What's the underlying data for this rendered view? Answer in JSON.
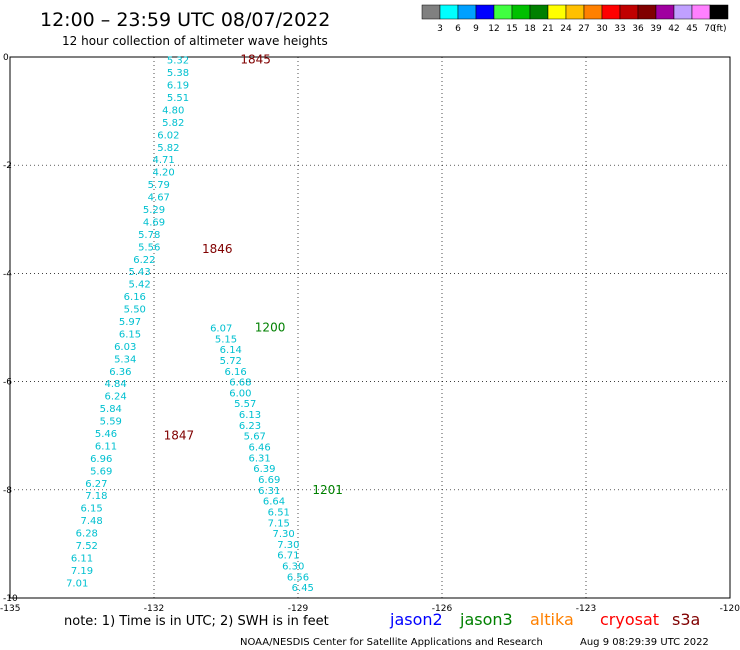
{
  "title": "12:00 – 23:59 UTC 08/07/2022",
  "subtitle": "12 hour collection of altimeter wave heights",
  "legend": {
    "unit": "(ft)",
    "bins": [
      {
        "label": "3",
        "color": "#808080"
      },
      {
        "label": "6",
        "color": "#00ffff"
      },
      {
        "label": "9",
        "color": "#00a0ff"
      },
      {
        "label": "12",
        "color": "#0000ff"
      },
      {
        "label": "15",
        "color": "#40ff40"
      },
      {
        "label": "18",
        "color": "#00c000"
      },
      {
        "label": "21",
        "color": "#008000"
      },
      {
        "label": "24",
        "color": "#ffff00"
      },
      {
        "label": "27",
        "color": "#ffc000"
      },
      {
        "label": "30",
        "color": "#ff8000"
      },
      {
        "label": "33",
        "color": "#ff0000"
      },
      {
        "label": "36",
        "color": "#c00000"
      },
      {
        "label": "39",
        "color": "#800000"
      },
      {
        "label": "42",
        "color": "#a000a0"
      },
      {
        "label": "45",
        "color": "#c0a0ff"
      },
      {
        "label": "70",
        "color": "#ff80ff"
      },
      {
        "label": "",
        "color": "#000000"
      }
    ]
  },
  "footer": {
    "note": "note:  1) Time is in UTC;  2) SWH is in feet",
    "credit": "NOAA/NESDIS Center for Satellite Applications and Research",
    "timestamp": "Aug  9 08:29:39 UTC 2022",
    "satellites": [
      {
        "label": "jason2",
        "color": "#0000ff"
      },
      {
        "label": "jason3",
        "color": "#008000"
      },
      {
        "label": "altika",
        "color": "#ff8000"
      },
      {
        "label": "cryosat",
        "color": "#ff0000"
      },
      {
        "label": "s3a",
        "color": "#800000"
      }
    ]
  },
  "chart_data": {
    "type": "scatter",
    "xlim": [
      -135,
      -120
    ],
    "ylim": [
      -10,
      0
    ],
    "x_ticks": [
      "-135",
      "-132",
      "-129",
      "-126",
      "-123",
      "-120"
    ],
    "y_ticks": [
      "0",
      "-2",
      "-4",
      "-6",
      "-8",
      "-10"
    ],
    "value_color": "#00c0d0",
    "passes": [
      {
        "satellite": "s3a",
        "label_color": "#800000",
        "time_labels": [
          {
            "text": "1845",
            "x": -130.2,
            "y": -0.05
          },
          {
            "text": "1846",
            "x": -131.0,
            "y": -3.55
          },
          {
            "text": "1847",
            "x": -131.8,
            "y": -7.0
          }
        ],
        "points": [
          {
            "x": -131.5,
            "y": -0.05,
            "v": "5.32"
          },
          {
            "x": -131.5,
            "y": -0.28,
            "v": "5.38"
          },
          {
            "x": -131.5,
            "y": -0.51,
            "v": "6.19"
          },
          {
            "x": -131.5,
            "y": -0.74,
            "v": "5.51"
          },
          {
            "x": -131.6,
            "y": -0.97,
            "v": "4.80"
          },
          {
            "x": -131.6,
            "y": -1.2,
            "v": "5.82"
          },
          {
            "x": -131.7,
            "y": -1.43,
            "v": "6.02"
          },
          {
            "x": -131.7,
            "y": -1.66,
            "v": "5.82"
          },
          {
            "x": -131.8,
            "y": -1.89,
            "v": "4.71"
          },
          {
            "x": -131.8,
            "y": -2.12,
            "v": "4.20"
          },
          {
            "x": -131.9,
            "y": -2.35,
            "v": "5.79"
          },
          {
            "x": -131.9,
            "y": -2.58,
            "v": "4.67"
          },
          {
            "x": -132.0,
            "y": -2.81,
            "v": "5.29"
          },
          {
            "x": -132.0,
            "y": -3.04,
            "v": "4.69"
          },
          {
            "x": -132.1,
            "y": -3.27,
            "v": "5.78"
          },
          {
            "x": -132.1,
            "y": -3.5,
            "v": "5.56"
          },
          {
            "x": -132.2,
            "y": -3.73,
            "v": "6.22"
          },
          {
            "x": -132.3,
            "y": -3.96,
            "v": "5.43"
          },
          {
            "x": -132.3,
            "y": -4.19,
            "v": "5.42"
          },
          {
            "x": -132.4,
            "y": -4.42,
            "v": "6.16"
          },
          {
            "x": -132.4,
            "y": -4.65,
            "v": "5.50"
          },
          {
            "x": -132.5,
            "y": -4.88,
            "v": "5.97"
          },
          {
            "x": -132.5,
            "y": -5.11,
            "v": "6.15"
          },
          {
            "x": -132.6,
            "y": -5.34,
            "v": "6.03"
          },
          {
            "x": -132.6,
            "y": -5.57,
            "v": "5.34"
          },
          {
            "x": -132.7,
            "y": -5.8,
            "v": "6.36"
          },
          {
            "x": -132.8,
            "y": -6.03,
            "v": "4.84"
          },
          {
            "x": -132.8,
            "y": -6.26,
            "v": "6.24"
          },
          {
            "x": -132.9,
            "y": -6.49,
            "v": "5.84"
          },
          {
            "x": -132.9,
            "y": -6.72,
            "v": "5.59"
          },
          {
            "x": -133.0,
            "y": -6.95,
            "v": "5.46"
          },
          {
            "x": -133.0,
            "y": -7.18,
            "v": "6.11"
          },
          {
            "x": -133.1,
            "y": -7.41,
            "v": "6.96"
          },
          {
            "x": -133.1,
            "y": -7.64,
            "v": "5.69"
          },
          {
            "x": -133.2,
            "y": -7.87,
            "v": "6.27"
          },
          {
            "x": -133.2,
            "y": -8.1,
            "v": "7.18"
          },
          {
            "x": -133.3,
            "y": -8.33,
            "v": "6.15"
          },
          {
            "x": -133.3,
            "y": -8.56,
            "v": "7.48"
          },
          {
            "x": -133.4,
            "y": -8.79,
            "v": "6.28"
          },
          {
            "x": -133.4,
            "y": -9.02,
            "v": "7.52"
          },
          {
            "x": -133.5,
            "y": -9.25,
            "v": "6.11"
          },
          {
            "x": -133.5,
            "y": -9.48,
            "v": "7.19"
          },
          {
            "x": -133.6,
            "y": -9.71,
            "v": "7.01"
          }
        ]
      },
      {
        "satellite": "jason3",
        "label_color": "#008000",
        "time_labels": [
          {
            "text": "1200",
            "x": -129.9,
            "y": -5.0
          },
          {
            "text": "1201",
            "x": -128.7,
            "y": -8.0
          }
        ],
        "points": [
          {
            "x": -130.6,
            "y": -5.0,
            "v": "6.07"
          },
          {
            "x": -130.5,
            "y": -5.2,
            "v": "5.15"
          },
          {
            "x": -130.4,
            "y": -5.4,
            "v": "6.14"
          },
          {
            "x": -130.4,
            "y": -5.6,
            "v": "5.72"
          },
          {
            "x": -130.3,
            "y": -5.8,
            "v": "6.16"
          },
          {
            "x": -130.2,
            "y": -6.0,
            "v": "6.68"
          },
          {
            "x": -130.2,
            "y": -6.2,
            "v": "6.00"
          },
          {
            "x": -130.1,
            "y": -6.4,
            "v": "5.57"
          },
          {
            "x": -130.0,
            "y": -6.6,
            "v": "6.13"
          },
          {
            "x": -130.0,
            "y": -6.8,
            "v": "6.23"
          },
          {
            "x": -129.9,
            "y": -7.0,
            "v": "5.67"
          },
          {
            "x": -129.8,
            "y": -7.2,
            "v": "6.46"
          },
          {
            "x": -129.8,
            "y": -7.4,
            "v": "6.31"
          },
          {
            "x": -129.7,
            "y": -7.6,
            "v": "6.39"
          },
          {
            "x": -129.6,
            "y": -7.8,
            "v": "6.69"
          },
          {
            "x": -129.6,
            "y": -8.0,
            "v": "6.31"
          },
          {
            "x": -129.5,
            "y": -8.2,
            "v": "6.64"
          },
          {
            "x": -129.4,
            "y": -8.4,
            "v": "6.51"
          },
          {
            "x": -129.4,
            "y": -8.6,
            "v": "7.15"
          },
          {
            "x": -129.3,
            "y": -8.8,
            "v": "7.30"
          },
          {
            "x": -129.2,
            "y": -9.0,
            "v": "7.30"
          },
          {
            "x": -129.2,
            "y": -9.2,
            "v": "6.71"
          },
          {
            "x": -129.1,
            "y": -9.4,
            "v": "6.30"
          },
          {
            "x": -129.0,
            "y": -9.6,
            "v": "6.56"
          },
          {
            "x": -128.9,
            "y": -9.8,
            "v": "6.45"
          }
        ]
      }
    ]
  }
}
